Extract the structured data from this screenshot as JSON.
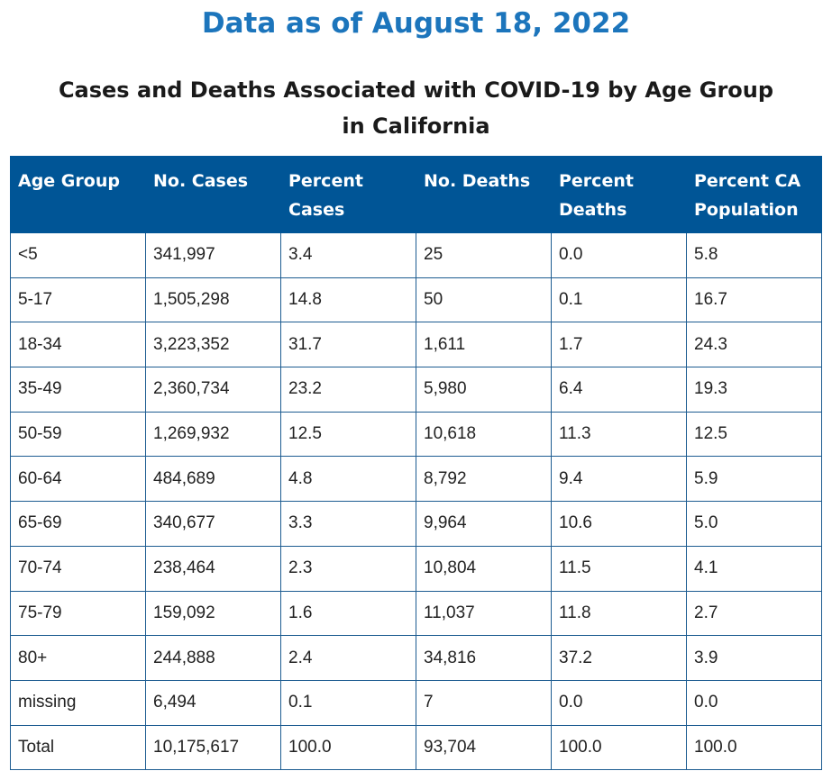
{
  "header": {
    "as_of": "Data as of August 18, 2022",
    "title_line1": "Cases and Deaths Associated with COVID-19 by Age Group",
    "title_line2": "in California"
  },
  "table": {
    "headers": [
      "Age Group",
      "No. Cases",
      "Percent Cases",
      "No. Deaths",
      "Percent Deaths",
      "Percent CA Population"
    ],
    "rows": [
      [
        "<5",
        "341,997",
        "3.4",
        "25",
        "0.0",
        "5.8"
      ],
      [
        "5-17",
        "1,505,298",
        "14.8",
        "50",
        "0.1",
        "16.7"
      ],
      [
        "18-34",
        "3,223,352",
        "31.7",
        "1,611",
        "1.7",
        "24.3"
      ],
      [
        "35-49",
        "2,360,734",
        "23.2",
        "5,980",
        "6.4",
        "19.3"
      ],
      [
        "50-59",
        "1,269,932",
        "12.5",
        "10,618",
        "11.3",
        "12.5"
      ],
      [
        "60-64",
        "484,689",
        "4.8",
        "8,792",
        "9.4",
        "5.9"
      ],
      [
        "65-69",
        "340,677",
        "3.3",
        "9,964",
        "10.6",
        "5.0"
      ],
      [
        "70-74",
        "238,464",
        "2.3",
        "10,804",
        "11.5",
        "4.1"
      ],
      [
        "75-79",
        "159,092",
        "1.6",
        "11,037",
        "11.8",
        "2.7"
      ],
      [
        "80+",
        "244,888",
        "2.4",
        "34,816",
        "37.2",
        "3.9"
      ],
      [
        "missing",
        "6,494",
        "0.1",
        "7",
        "0.0",
        "0.0"
      ],
      [
        "Total",
        "10,175,617",
        "100.0",
        "93,704",
        "100.0",
        "100.0"
      ]
    ]
  },
  "colors": {
    "as_of_text": "#1c75bc",
    "header_bg": "#005596",
    "header_text": "#ffffff",
    "cell_border": "#1d5c91"
  }
}
